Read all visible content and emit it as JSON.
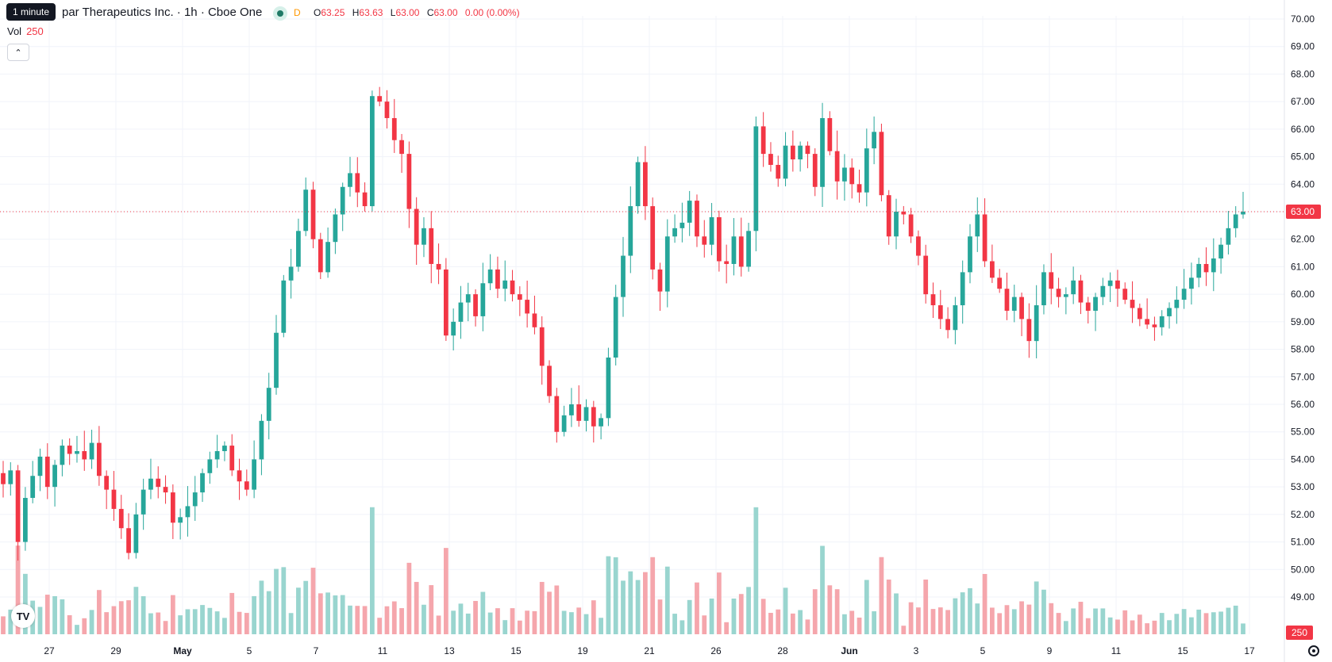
{
  "header": {
    "tooltip": "1 minute",
    "title": "par Therapeutics Inc. · 1h · Cboe One",
    "badge": "D",
    "ohlc": {
      "o_label": "O",
      "o": "63.25",
      "h_label": "H",
      "h": "63.63",
      "l_label": "L",
      "l": "63.00",
      "c_label": "C",
      "c": "63.00",
      "change": "0.00 (0.00%)"
    },
    "vol_label": "Vol",
    "vol_value": "250",
    "collapse_icon": "chevron-up-icon",
    "logo": "tradingview-logo-icon",
    "settings_icon": "gear-icon"
  },
  "colors": {
    "up": "#26a69a",
    "down": "#f23645",
    "up_volume": "#99d5cf",
    "down_volume": "#f5a6ac",
    "grid": "#f0f3fa",
    "text": "#131722"
  },
  "chart_data": {
    "type": "candlestick",
    "interval": "1h",
    "y_ticks": [
      "49.00",
      "50.00",
      "51.00",
      "52.00",
      "53.00",
      "54.00",
      "55.00",
      "56.00",
      "57.00",
      "58.00",
      "59.00",
      "60.00",
      "61.00",
      "62.00",
      "63.00",
      "64.00",
      "65.00",
      "66.00",
      "67.00",
      "68.00",
      "69.00",
      "70.00"
    ],
    "ylim": [
      48.2,
      70.3
    ],
    "x_labels": [
      "27",
      "29",
      "May",
      "5",
      "7",
      "11",
      "13",
      "15",
      "19",
      "21",
      "26",
      "28",
      "Jun",
      "3",
      "5",
      "9",
      "11",
      "15",
      "17"
    ],
    "last_price": 63.0,
    "last_price_label": "63.00",
    "last_volume_label": "250",
    "series_closes": [
      53.1,
      53.6,
      51.0,
      52.6,
      53.4,
      54.1,
      53.0,
      53.8,
      54.5,
      54.2,
      54.3,
      54.0,
      54.6,
      53.4,
      52.9,
      52.2,
      51.5,
      50.6,
      52.0,
      52.9,
      53.3,
      53.0,
      52.8,
      51.7,
      51.9,
      52.3,
      52.8,
      53.5,
      54.0,
      54.3,
      54.5,
      53.6,
      53.2,
      52.9,
      54.0,
      55.4,
      56.6,
      58.6,
      60.5,
      61.0,
      62.3,
      63.8,
      62.0,
      60.8,
      61.9,
      62.9,
      63.9,
      64.4,
      63.7,
      63.2,
      67.2,
      67.0,
      66.4,
      65.6,
      65.1,
      63.1,
      61.8,
      62.4,
      61.1,
      60.9,
      58.5,
      59.0,
      59.7,
      60.0,
      59.2,
      60.4,
      60.9,
      60.2,
      60.5,
      60.0,
      59.8,
      59.3,
      58.8,
      57.4,
      56.3,
      55.0,
      55.6,
      56.0,
      55.4,
      55.9,
      55.2,
      55.5,
      57.7,
      59.9,
      61.4,
      63.2,
      64.8,
      63.2,
      60.9,
      60.1,
      62.1,
      62.4,
      62.6,
      63.4,
      62.1,
      61.8,
      62.8,
      61.2,
      61.1,
      62.1,
      61.0,
      62.3,
      66.1,
      65.1,
      64.7,
      64.2,
      65.4,
      64.9,
      65.4,
      65.1,
      63.9,
      66.4,
      65.2,
      64.1,
      64.6,
      64.0,
      63.7,
      65.3,
      65.9,
      63.6,
      62.1,
      63.0,
      62.9,
      62.1,
      61.4,
      60.0,
      59.6,
      59.1,
      58.7,
      59.6,
      60.8,
      62.1,
      62.9,
      61.2,
      60.6,
      60.2,
      59.4,
      59.9,
      59.1,
      58.3,
      59.6,
      60.8,
      60.2,
      59.9,
      60.0,
      60.5,
      59.7,
      59.4,
      59.9,
      60.3,
      60.5,
      60.2,
      59.8,
      59.5,
      59.1,
      58.9,
      58.8,
      59.2,
      59.5,
      59.8,
      60.2,
      60.6,
      61.1,
      60.8,
      61.3,
      61.8,
      62.4,
      62.9,
      63.0
    ]
  }
}
